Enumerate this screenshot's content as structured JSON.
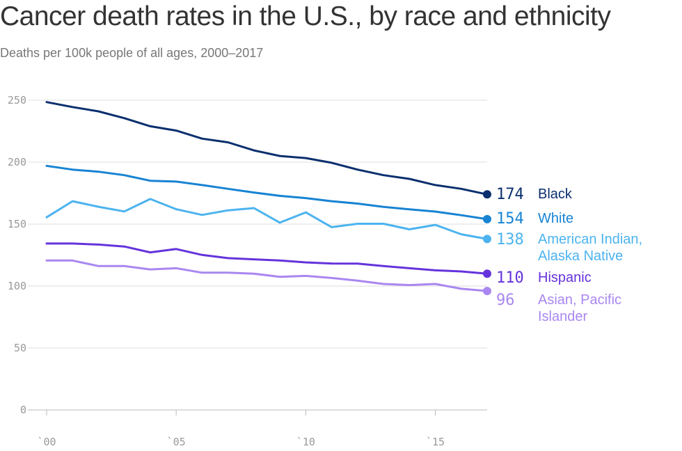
{
  "chart_data": {
    "type": "line",
    "title": "Cancer death rates in the U.S., by race and ethnicity",
    "subtitle": "Deaths per 100k people of all ages, 2000–2017",
    "x": [
      2000,
      2001,
      2002,
      2003,
      2004,
      2005,
      2006,
      2007,
      2008,
      2009,
      2010,
      2011,
      2012,
      2013,
      2014,
      2015,
      2016,
      2017
    ],
    "x_ticks": [
      2000,
      2005,
      2010,
      2015
    ],
    "x_tick_labels": [
      "`00",
      "`05",
      "`10",
      "`15"
    ],
    "y_ticks": [
      0,
      50,
      100,
      150,
      200,
      250
    ],
    "ylim": [
      0,
      260
    ],
    "grid": true,
    "series": [
      {
        "name": "Black",
        "name_lines": [
          "Black"
        ],
        "end_label": "174",
        "color": "#0a2f6e",
        "values": [
          248.5,
          244.5,
          241,
          235.5,
          229,
          225.5,
          219,
          216,
          209.5,
          205,
          203.3,
          199.5,
          194,
          189.5,
          186.5,
          181.5,
          178.5,
          174
        ]
      },
      {
        "name": "White",
        "name_lines": [
          "White"
        ],
        "end_label": "154",
        "color": "#1783d3",
        "values": [
          197,
          194,
          192.3,
          189.5,
          185,
          184.3,
          181.5,
          178.5,
          175.5,
          172.8,
          171,
          168.5,
          166.6,
          163.9,
          161.9,
          160.1,
          157.2,
          154
        ]
      },
      {
        "name": "American Indian, Alaska Native",
        "name_lines": [
          "American Indian,",
          "Alaska Native"
        ],
        "end_label": "138",
        "color": "#4cb3ef",
        "values": [
          155.5,
          168.5,
          164,
          160.2,
          170.3,
          162,
          157.4,
          161.1,
          162.9,
          151.2,
          159.5,
          147.5,
          150.3,
          150.3,
          145.8,
          149.4,
          141.8,
          138
        ]
      },
      {
        "name": "Hispanic",
        "name_lines": [
          "Hispanic"
        ],
        "end_label": "110",
        "color": "#6533dc",
        "values": [
          134.3,
          134.3,
          133.5,
          131.9,
          127.2,
          129.9,
          125.1,
          122.5,
          121.6,
          120.6,
          119.1,
          118.2,
          118.1,
          116.1,
          114.4,
          112.7,
          111.8,
          110
        ]
      },
      {
        "name": "Asian, Pacific Islander",
        "name_lines": [
          "Asian, Pacific",
          "Islander"
        ],
        "end_label": "96",
        "color": "#a987f0",
        "values": [
          120.7,
          120.6,
          116.1,
          116.1,
          113.4,
          114.4,
          110.8,
          110.8,
          110,
          107.4,
          108.2,
          106.5,
          104.4,
          101.7,
          100.8,
          101.7,
          97.8,
          96
        ]
      }
    ]
  }
}
